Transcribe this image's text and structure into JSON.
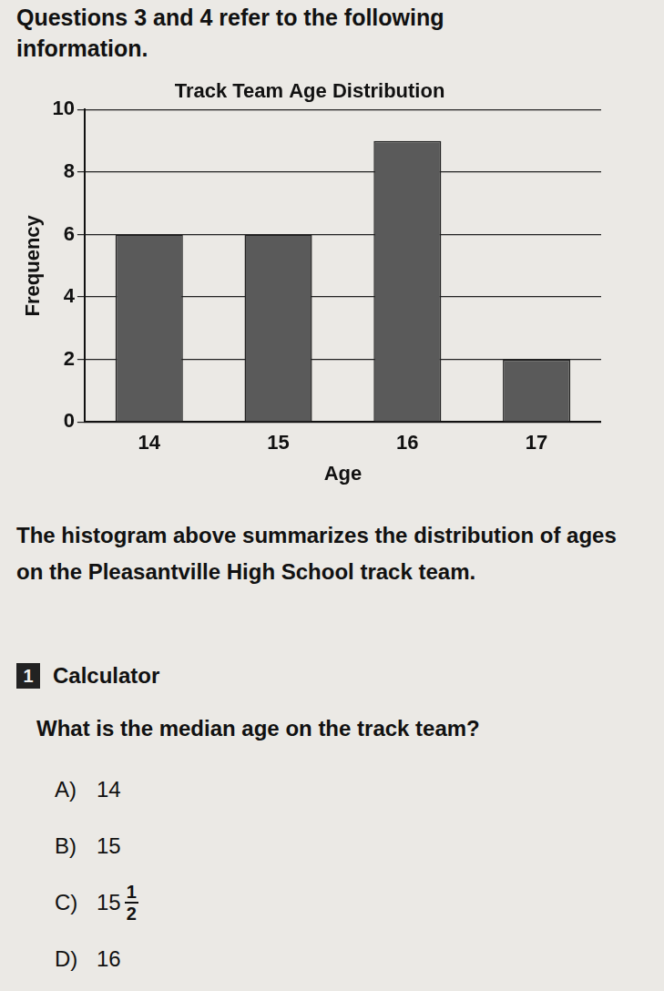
{
  "header": "Questions 3 and 4 refer to the following information.",
  "chart_data": {
    "type": "bar",
    "title": "Track Team Age Distribution",
    "x_label": "Age",
    "y_label": "Frequency",
    "categories": [
      "14",
      "15",
      "16",
      "17"
    ],
    "values": [
      6,
      6,
      9,
      2
    ],
    "color": "#5a5a5a",
    "ylim": [
      0,
      10
    ],
    "yticks": [
      0,
      2,
      4,
      6,
      8,
      10
    ],
    "grid": true
  },
  "caption": "The histogram above summarizes the distribution of ages on the Pleasantville High School track team.",
  "question": {
    "number": "1",
    "tag": "Calculator",
    "text": "What is the median age on the track team?",
    "choices": [
      {
        "letter": "A)",
        "text": "14"
      },
      {
        "letter": "B)",
        "text": "15"
      },
      {
        "letter": "C)",
        "text": "15",
        "numerator": "1",
        "denominator": "2"
      },
      {
        "letter": "D)",
        "text": "16"
      }
    ]
  }
}
